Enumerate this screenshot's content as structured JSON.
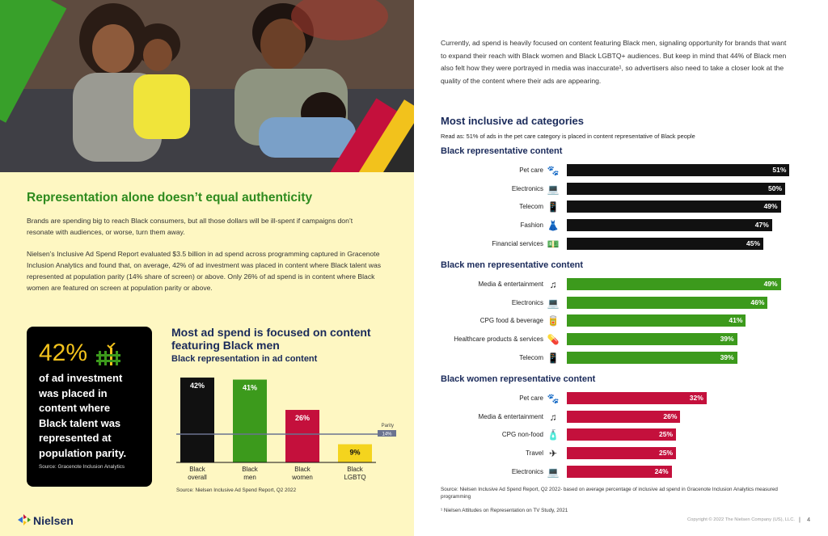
{
  "left": {
    "heading": "Representation alone doesn’t equal authenticity",
    "para1": "Brands are spending big to reach Black consumers, but all those dollars will be ill-spent if campaigns don’t resonate with audiences, or worse, turn them away.",
    "para2": "Nielsen’s Inclusive Ad Spend Report evaluated $3.5 billion in ad spend across programming captured in Gracenote Inclusion Analytics and found that, on average, 42% of ad investment was placed in content where Black talent was represented at population parity (14% share of screen) or above. Only 26% of ad spend is in content where Black women are featured on screen at population parity or above.",
    "stat_card": {
      "value": "42%",
      "text": "of ad investment was placed in content where Black talent was represented at population parity.",
      "source": "Source: Gracenote Inclusion Analytics"
    },
    "logo_text": "Nielsen"
  },
  "chart_data": [
    {
      "type": "bar",
      "title": "Most ad spend is focused on content featuring Black men",
      "subtitle": "Black representation in ad content",
      "categories": [
        "Black overall",
        "Black men",
        "Black women",
        "Black LGBTQ"
      ],
      "values": [
        42,
        41,
        26,
        9
      ],
      "labels": [
        "42%",
        "41%",
        "26%",
        "9%"
      ],
      "colors": [
        "#111111",
        "#3c9a1c",
        "#c4103c",
        "#f4d41e"
      ],
      "reference_line": {
        "label": "Parity",
        "value": 14,
        "value_label": "14%"
      },
      "ylim": [
        0,
        50
      ],
      "source": "Source: Nielsen Inclusive Ad Spend Report, Q2 2022"
    },
    {
      "type": "bar",
      "orientation": "horizontal",
      "title": "Black representative content",
      "color": "#111111",
      "categories": [
        "Pet care",
        "Electronics",
        "Telecom",
        "Fashion",
        "Financial services"
      ],
      "icons": [
        "paw-icon",
        "laptop-icon",
        "phone-icon",
        "dress-icon",
        "money-icon"
      ],
      "values": [
        51,
        50,
        49,
        47,
        45
      ],
      "labels": [
        "51%",
        "50%",
        "49%",
        "47%",
        "45%"
      ]
    },
    {
      "type": "bar",
      "orientation": "horizontal",
      "title": "Black men representative content",
      "color": "#3c9a1c",
      "categories": [
        "Media & entertainment",
        "Electronics",
        "CPG food & beverage",
        "Healthcare products & services",
        "Telecom"
      ],
      "icons": [
        "music-icon",
        "laptop-icon",
        "food-icon",
        "medicine-icon",
        "phone-icon"
      ],
      "values": [
        49,
        46,
        41,
        39,
        39
      ],
      "labels": [
        "49%",
        "46%",
        "41%",
        "39%",
        "39%"
      ]
    },
    {
      "type": "bar",
      "orientation": "horizontal",
      "title": "Black women representative content",
      "color": "#c4103c",
      "categories": [
        "Pet care",
        "Media & entertainment",
        "CPG non-food",
        "Travel",
        "Electronics"
      ],
      "icons": [
        "paw-icon",
        "music-icon",
        "spray-icon",
        "plane-icon",
        "laptop-icon"
      ],
      "values": [
        32,
        26,
        25,
        25,
        24
      ],
      "labels": [
        "32%",
        "26%",
        "25%",
        "25%",
        "24%"
      ]
    }
  ],
  "right": {
    "intro": "Currently, ad spend is heavily focused on content featuring Black men, signaling opportunity for brands that want to expand their reach with Black women and Black LGBTQ+ audiences. But keep in mind that 44% of Black men also felt how they were portrayed in media was inaccurate¹, so advertisers also need to take a closer look at the quality of the content where their ads are appearing.",
    "section_title": "Most inclusive ad categories",
    "read_as": "Read as: 51% of ads in the pet care category is placed in content representative of Black people",
    "source": "Source: Nielsen Inclusive Ad Spend Report, Q2 2022- based on average percentage of inclusive ad spend in Gracenote Inclusion Analytics measured programming",
    "footnote": "¹ Nielsen Attitudes on Representation on TV Study, 2021",
    "copyright": "Copyright © 2022 The Nielsen Company (US), LLC.",
    "page_number": "4"
  }
}
